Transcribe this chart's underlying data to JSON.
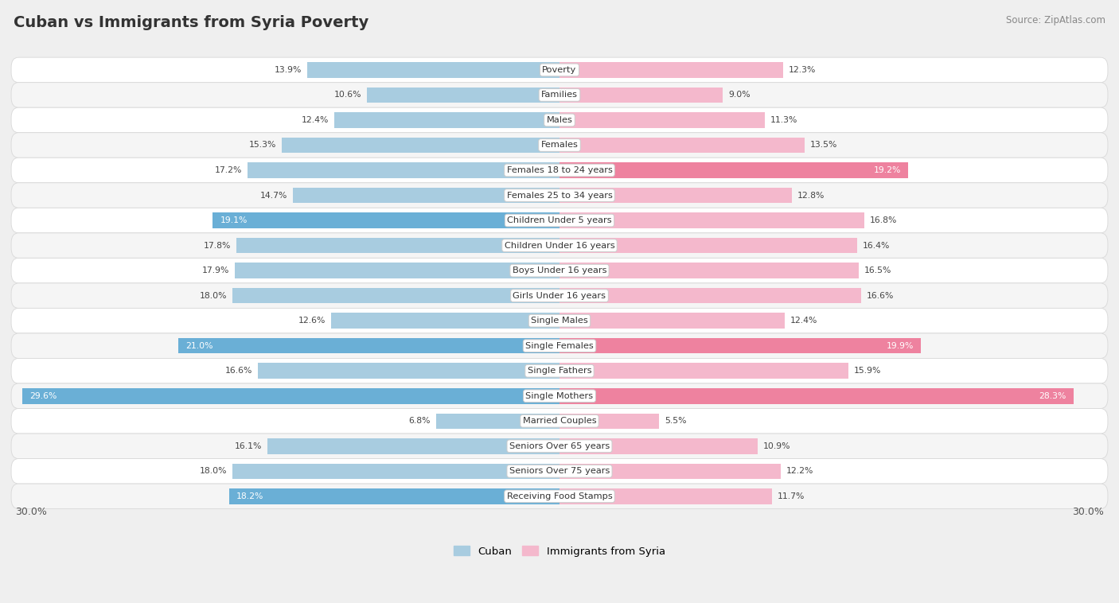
{
  "title": "Cuban vs Immigrants from Syria Poverty",
  "source": "Source: ZipAtlas.com",
  "categories": [
    "Poverty",
    "Families",
    "Males",
    "Females",
    "Females 18 to 24 years",
    "Females 25 to 34 years",
    "Children Under 5 years",
    "Children Under 16 years",
    "Boys Under 16 years",
    "Girls Under 16 years",
    "Single Males",
    "Single Females",
    "Single Fathers",
    "Single Mothers",
    "Married Couples",
    "Seniors Over 65 years",
    "Seniors Over 75 years",
    "Receiving Food Stamps"
  ],
  "cuban": [
    13.9,
    10.6,
    12.4,
    15.3,
    17.2,
    14.7,
    19.1,
    17.8,
    17.9,
    18.0,
    12.6,
    21.0,
    16.6,
    29.6,
    6.8,
    16.1,
    18.0,
    18.2
  ],
  "syria": [
    12.3,
    9.0,
    11.3,
    13.5,
    19.2,
    12.8,
    16.8,
    16.4,
    16.5,
    16.6,
    12.4,
    19.9,
    15.9,
    28.3,
    5.5,
    10.9,
    12.2,
    11.7
  ],
  "cuban_highlight_indices": [
    6,
    11,
    13,
    17
  ],
  "syria_highlight_indices": [
    4,
    11,
    13
  ],
  "cuban_color_normal": "#a8cce0",
  "cuban_color_highlight": "#6aafd6",
  "syria_color_normal": "#f4b8cc",
  "syria_color_highlight": "#ee829f",
  "max_val": 30.0,
  "bar_height": 0.62,
  "bg_color": "#efefef",
  "row_colors": [
    "#ffffff",
    "#f5f5f5"
  ]
}
